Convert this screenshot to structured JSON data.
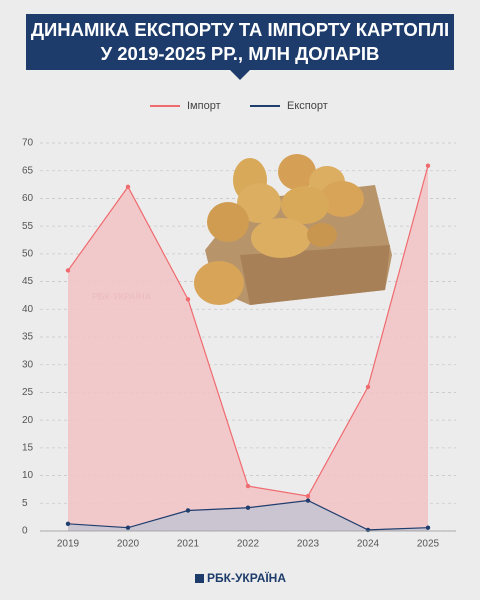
{
  "chart_data": {
    "type": "area",
    "title": "ДИНАМІКА ЕКСПОРТУ ТА ІМПОРТУ КАРТОПЛІ У 2019-2025 РР., МЛН ДОЛАРІВ",
    "categories": [
      "2019",
      "2020",
      "2021",
      "2022",
      "2023",
      "2024",
      "2025"
    ],
    "series": [
      {
        "name": "Імпорт",
        "color": "#ef6b6f",
        "fill": "#f3c3c5",
        "values": [
          47,
          62.1,
          41.8,
          8.1,
          6.3,
          26,
          65.9
        ]
      },
      {
        "name": "Експорт",
        "color": "#1f3d6d",
        "fill": "#c4c3d2",
        "values": [
          1.3,
          0.6,
          3.7,
          4.2,
          5.5,
          0.2,
          0.6
        ]
      }
    ],
    "ylim": [
      0,
      70
    ],
    "yticks": [
      0,
      5,
      10,
      15,
      20,
      25,
      30,
      35,
      40,
      45,
      50,
      55,
      60,
      65,
      70
    ],
    "grid": true,
    "legend": "top",
    "watermark": "РБК-УКРАЇНА",
    "footer": "РБК-УКРАЇНА"
  }
}
